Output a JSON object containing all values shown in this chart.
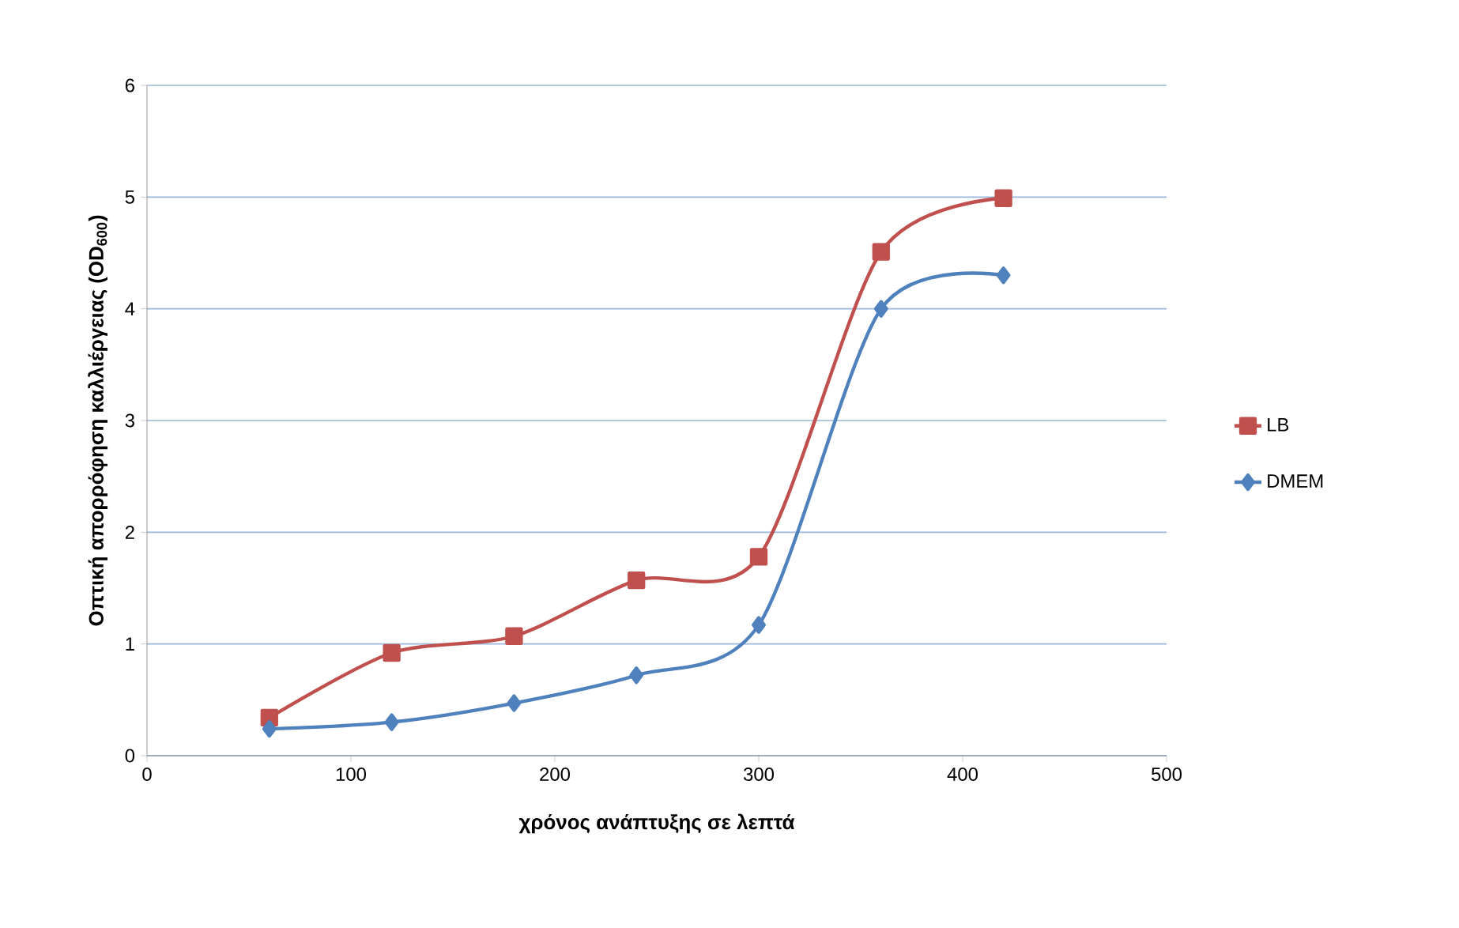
{
  "chart_data": {
    "type": "line",
    "xlabel": "χρόνος ανάπτυξης σε λεπτά",
    "ylabel": "Οπτική απορρόφηση καλλιέργειας (OD$_{600}$)",
    "x": [
      60,
      120,
      180,
      240,
      300,
      360,
      420
    ],
    "series": [
      {
        "name": "LB",
        "color": "#c0504d",
        "marker": "square",
        "values": [
          0.34,
          0.92,
          1.07,
          1.57,
          1.78,
          4.51,
          4.99
        ]
      },
      {
        "name": "DMEM",
        "color": "#4f81bd",
        "marker": "diamond",
        "values": [
          0.24,
          0.3,
          0.47,
          0.72,
          1.17,
          4.0,
          4.3
        ]
      }
    ],
    "xlim": [
      0,
      500
    ],
    "xticks": [
      0,
      100,
      200,
      300,
      400,
      500
    ],
    "ylim": [
      0,
      6
    ],
    "yticks": [
      0,
      1,
      2,
      3,
      4,
      5,
      6
    ],
    "grid": "y",
    "legend": "right",
    "line_style": "solid"
  }
}
